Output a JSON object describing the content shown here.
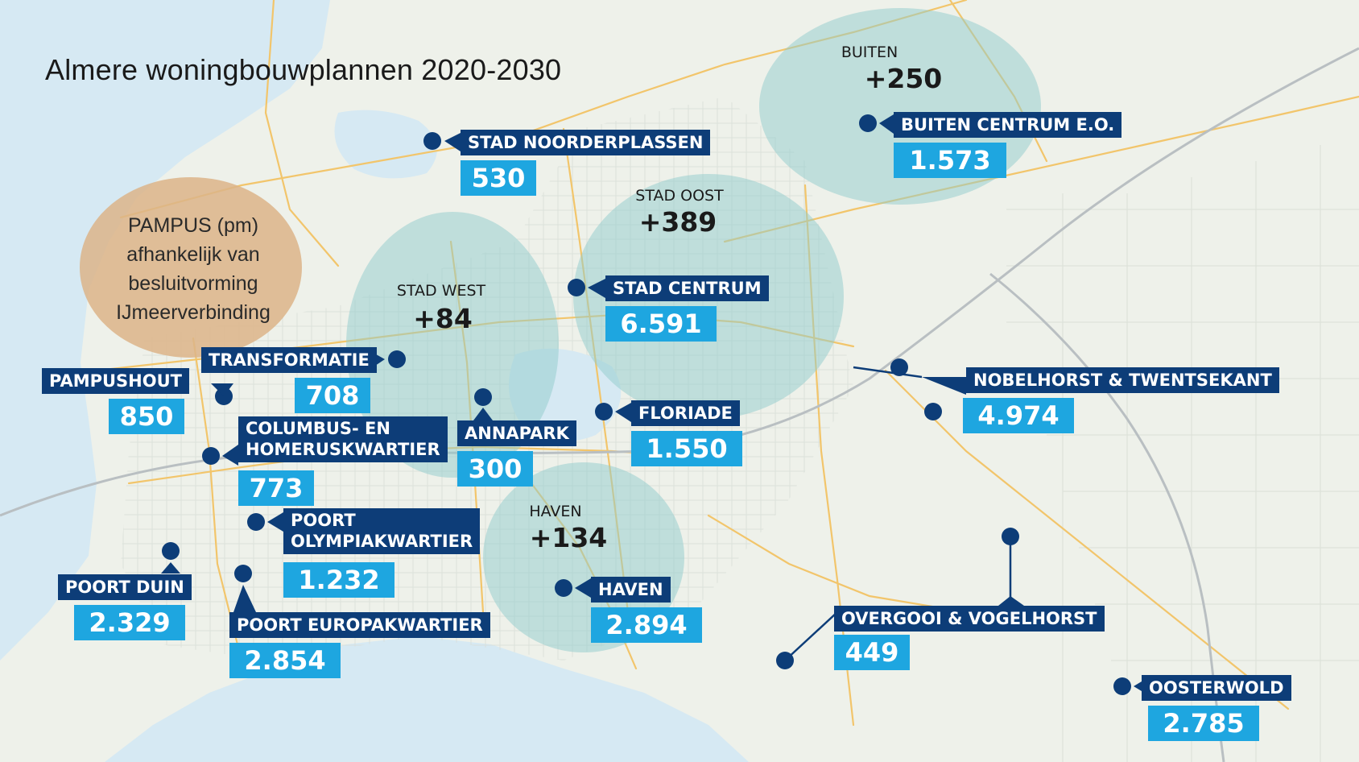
{
  "title": "Almere woningbouwplannen 2020-2030",
  "colors": {
    "water": "#d6e9f3",
    "land": "#eef1ea",
    "road": "#f2c56b",
    "district": "#8fcccc",
    "pampus": "#dcb488",
    "label_bg": "#0d3d78",
    "value_bg": "#1ea6e0",
    "marker": "#0d3d78"
  },
  "pampus": {
    "line1": "PAMPUS (pm)",
    "line2": "afhankelijk van",
    "line3": "besluitvorming",
    "line4": "IJmeerverbinding"
  },
  "districts": {
    "buiten": {
      "name": "BUITEN",
      "value": "+250"
    },
    "stad_oost": {
      "name": "STAD OOST",
      "value": "+389"
    },
    "stad_west": {
      "name": "STAD WEST",
      "value": "+84"
    },
    "haven": {
      "name": "HAVEN",
      "value": "+134"
    }
  },
  "projects": {
    "stad_noorderplassen": {
      "name": "STAD NOORDERPLASSEN",
      "value": "530"
    },
    "buiten_centrum": {
      "name": "BUITEN CENTRUM E.O.",
      "value": "1.573"
    },
    "stad_centrum": {
      "name": "STAD CENTRUM",
      "value": "6.591"
    },
    "transformatie": {
      "name": "TRANSFORMATIE",
      "value": "708"
    },
    "pampushout": {
      "name": "PAMPUSHOUT",
      "value": "850"
    },
    "nobelhorst": {
      "name": "NOBELHORST & TWENTSEKANT",
      "value": "4.974"
    },
    "columbus": {
      "name_line1": "COLUMBUS- EN",
      "name_line2": "HOMERUSKWARTIER",
      "value": "773"
    },
    "annapark": {
      "name": "ANNAPARK",
      "value": "300"
    },
    "floriade": {
      "name": "FLORIADE",
      "value": "1.550"
    },
    "poort_olympia": {
      "name_line1": "POORT",
      "name_line2": "OLYMPIAKWARTIER",
      "value": "1.232"
    },
    "poort_duin": {
      "name": "POORT DUIN",
      "value": "2.329"
    },
    "haven": {
      "name": "HAVEN",
      "value": "2.894"
    },
    "poort_europa": {
      "name": "POORT EUROPAKWARTIER",
      "value": "2.854"
    },
    "overgooi": {
      "name": "OVERGOOI & VOGELHORST",
      "value": "449"
    },
    "oosterwold": {
      "name": "OOSTERWOLD",
      "value": "2.785"
    }
  }
}
